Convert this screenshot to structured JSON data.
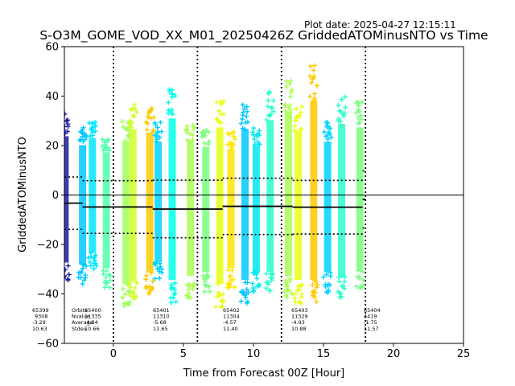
{
  "plot_date": "Plot date: 2025-04-27 12:15:11",
  "chart_data": {
    "type": "scatter",
    "title": "S-O3M_GOME_VOD_XX_M01_20250426Z GriddedATOMinusNTO vs Time",
    "xlabel": "Time from Forecast 00Z [Hour]",
    "ylabel": "GriddedATOMinusNTO",
    "xlim": [
      -3.5,
      25
    ],
    "ylim": [
      -60,
      60
    ],
    "xticks": [
      "0",
      "5",
      "10",
      "15",
      "20",
      "25"
    ],
    "yticks": [
      "−60",
      "−40",
      "−20",
      "0",
      "20",
      "40",
      "60"
    ],
    "grid": false,
    "zero_line": 0,
    "window_boundaries": [
      0,
      6,
      12,
      18
    ],
    "stat_labels": [
      "Orbits",
      "Nvalue",
      "Average",
      "Stdev"
    ],
    "stat_blocks": [
      {
        "orbit": "65399",
        "nvalue": "9308",
        "average": "-3.29",
        "stdev": "10.63"
      },
      {
        "orbit": "65400",
        "nvalue": "11335",
        "average": "-4.84",
        "stdev": "10.66"
      },
      {
        "orbit": "65401",
        "nvalue": "11310",
        "average": "-5.68",
        "stdev": "11.65"
      },
      {
        "orbit": "65402",
        "nvalue": "11304",
        "average": "-4.57",
        "stdev": "11.40"
      },
      {
        "orbit": "65403",
        "nvalue": "11329",
        "average": "-4.93",
        "stdev": "10.88"
      },
      {
        "orbit": "65404",
        "nvalue": "4419",
        "average": "-1.75",
        "stdev": "11.57"
      }
    ],
    "orbit_segments": [
      {
        "x_start": -3.5,
        "x_end": -2.2,
        "mean": -3.29,
        "upper": 7.3,
        "lower": -13.9
      },
      {
        "x_start": -2.2,
        "x_end": 2.8,
        "mean": -4.84,
        "upper": 5.8,
        "lower": -15.5
      },
      {
        "x_start": 2.8,
        "x_end": 7.8,
        "mean": -5.68,
        "upper": 6.0,
        "lower": -17.3
      },
      {
        "x_start": 7.8,
        "x_end": 12.8,
        "mean": -4.57,
        "upper": 6.8,
        "lower": -16.0
      },
      {
        "x_start": 12.8,
        "x_end": 17.8,
        "mean": -4.93,
        "upper": 5.9,
        "lower": -15.8
      },
      {
        "x_start": 17.8,
        "x_end": 18.0,
        "mean": -1.75,
        "upper": 9.8,
        "lower": -13.3
      }
    ],
    "point_bands": [
      {
        "x": -3.45,
        "color": "#1a1aa6",
        "low": -35,
        "high": 33
      },
      {
        "x": -2.2,
        "color": "#00c8ff",
        "low": -36,
        "high": 28
      },
      {
        "x": -1.5,
        "color": "#00e6ff",
        "low": -30,
        "high": 32
      },
      {
        "x": -0.5,
        "color": "#50ffaa",
        "low": -38,
        "high": 24
      },
      {
        "x": 0.9,
        "color": "#a0ff5a",
        "low": -46,
        "high": 30
      },
      {
        "x": 1.4,
        "color": "#d2ff2a",
        "low": -45,
        "high": 37
      },
      {
        "x": 2.6,
        "color": "#ffc800",
        "low": -40,
        "high": 35
      },
      {
        "x": 3.2,
        "color": "#00d2ff",
        "low": -35,
        "high": 30
      },
      {
        "x": 4.2,
        "color": "#00ffe6",
        "low": -44,
        "high": 43
      },
      {
        "x": 5.5,
        "color": "#aaff50",
        "low": -42,
        "high": 30
      },
      {
        "x": 6.6,
        "color": "#78ff80",
        "low": -40,
        "high": 27
      },
      {
        "x": 7.6,
        "color": "#e6ff14",
        "low": -46,
        "high": 38
      },
      {
        "x": 8.4,
        "color": "#ffe600",
        "low": -38,
        "high": 26
      },
      {
        "x": 9.4,
        "color": "#00c8ff",
        "low": -44,
        "high": 37
      },
      {
        "x": 10.2,
        "color": "#00e8f0",
        "low": -40,
        "high": 28
      },
      {
        "x": 11.2,
        "color": "#28ffcc",
        "low": -40,
        "high": 42
      },
      {
        "x": 12.5,
        "color": "#aaff50",
        "low": -42,
        "high": 47
      },
      {
        "x": 13.2,
        "color": "#e6ff14",
        "low": -44,
        "high": 36
      },
      {
        "x": 14.3,
        "color": "#ffc800",
        "low": -44,
        "high": 53
      },
      {
        "x": 15.3,
        "color": "#00d2ff",
        "low": -40,
        "high": 30
      },
      {
        "x": 16.3,
        "color": "#28ffcc",
        "low": -42,
        "high": 40
      },
      {
        "x": 17.6,
        "color": "#78ff80",
        "low": -38,
        "high": 38
      }
    ]
  }
}
